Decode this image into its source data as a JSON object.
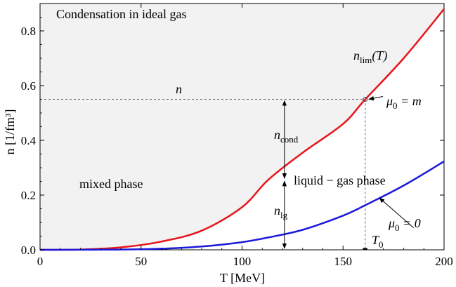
{
  "chart_data": {
    "type": "line",
    "title": "Condensation in ideal gas",
    "xlabel": "T  [MeV]",
    "ylabel": "n  [1/fm³]",
    "xlim": [
      0,
      200
    ],
    "ylim": [
      0,
      0.9
    ],
    "x_ticks": [
      "0",
      "50",
      "100",
      "150",
      "200"
    ],
    "y_ticks": [
      "0.0",
      "0.2",
      "0.4",
      "0.6",
      "0.8"
    ],
    "x_tick_values": [
      0,
      50,
      100,
      150,
      200
    ],
    "y_tick_values": [
      0,
      0.2,
      0.4,
      0.6,
      0.8
    ],
    "grid": false,
    "colors": {
      "red_curve": "#e8141b",
      "blue_curve": "#1a1adc",
      "shaded_region": "#f2f2f2"
    },
    "series": [
      {
        "name": "n_lim(T)",
        "color": "#e8141b",
        "x": [
          0,
          20,
          40,
          60,
          80,
          100,
          113,
          130,
          150,
          161,
          180,
          200
        ],
        "y": [
          0,
          0.001,
          0.009,
          0.03,
          0.07,
          0.156,
          0.256,
          0.355,
          0.46,
          0.55,
          0.7,
          0.88
        ]
      },
      {
        "name": "μ0 = 0",
        "color": "#1a1adc",
        "x": [
          0,
          40,
          60,
          80,
          100,
          113,
          130,
          150,
          161,
          180,
          200
        ],
        "y": [
          0,
          0.001,
          0.004,
          0.012,
          0.028,
          0.045,
          0.073,
          0.125,
          0.163,
          0.235,
          0.323
        ]
      }
    ],
    "reference_line": {
      "label": "n",
      "y": 0.55,
      "x_end": 161
    },
    "vertical_marker": {
      "label": "T0",
      "x": 161
    },
    "arrow_T": 113,
    "labels": {
      "n": "n",
      "n_lim_main": "n",
      "n_lim_sub": "lim",
      "n_lim_arg": "(T)",
      "mu_m_main": "μ",
      "mu_m_sub": "0",
      "mu_m_rest": " = m",
      "mu_0_main": "μ",
      "mu_0_sub": "0",
      "mu_0_rest": " = 0",
      "n_cond_main": "n",
      "n_cond_sub": "cond",
      "n_lg_main": "n",
      "n_lg_sub": "lg",
      "T0_main": "T",
      "T0_sub": "0",
      "mixed_phase": "mixed phase",
      "liquid_gas_phase": "liquid − gas phase"
    }
  }
}
